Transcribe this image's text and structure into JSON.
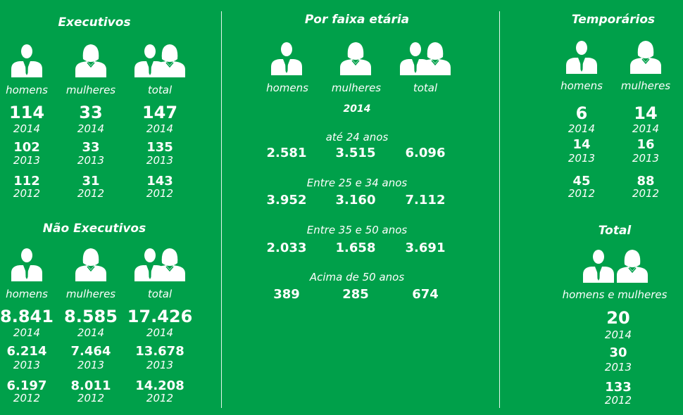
{
  "executivos": {
    "title": "Executivos",
    "labels": [
      "homens",
      "mulheres",
      "total"
    ],
    "rows": [
      {
        "values": [
          "114",
          "33",
          "147"
        ],
        "year": "2014"
      },
      {
        "values": [
          "102",
          "33",
          "135"
        ],
        "year": "2013"
      },
      {
        "values": [
          "112",
          "31",
          "143"
        ],
        "year": "2012"
      }
    ]
  },
  "nao_executivos": {
    "title": "Não Executivos",
    "labels": [
      "homens",
      "mulheres",
      "total"
    ],
    "rows": [
      {
        "values": [
          "8.841",
          "8.585",
          "17.426"
        ],
        "year": "2014"
      },
      {
        "values": [
          "6.214",
          "7.464",
          "13.678"
        ],
        "year": "2013"
      },
      {
        "values": [
          "6.197",
          "8.011",
          "14.208"
        ],
        "year": "2012"
      }
    ]
  },
  "faixa_etaria": {
    "title": "Por faixa etária",
    "labels": [
      "homens",
      "mulheres",
      "total"
    ],
    "year": "2014",
    "groups": [
      {
        "label": "até 24 anos",
        "values": [
          "2.581",
          "3.515",
          "6.096"
        ]
      },
      {
        "label": "Entre 25 e 34 anos",
        "values": [
          "3.952",
          "3.160",
          "7.112"
        ]
      },
      {
        "label": "Entre 35 e 50 anos",
        "values": [
          "2.033",
          "1.658",
          "3.691"
        ]
      },
      {
        "label": "Acima de 50 anos",
        "values": [
          "389",
          "285",
          "674"
        ]
      }
    ]
  },
  "temporarios": {
    "title": "Temporários",
    "labels": [
      "homens",
      "mulheres"
    ],
    "rows": [
      {
        "values": [
          "6",
          "14"
        ],
        "year": "2014"
      },
      {
        "values": [
          "14",
          "16"
        ],
        "year": "2013"
      },
      {
        "values": [
          "45",
          "88"
        ],
        "year": "2012"
      }
    ]
  },
  "total": {
    "title": "Total",
    "label": "homens e mulheres",
    "rows": [
      {
        "value": "20",
        "year": "2014"
      },
      {
        "value": "30",
        "year": "2013"
      },
      {
        "value": "133",
        "year": "2012"
      }
    ]
  },
  "colors": {
    "background": "#00a04a",
    "foreground": "#ffffff"
  },
  "icons": [
    "man-icon",
    "woman-icon",
    "group-icon"
  ]
}
